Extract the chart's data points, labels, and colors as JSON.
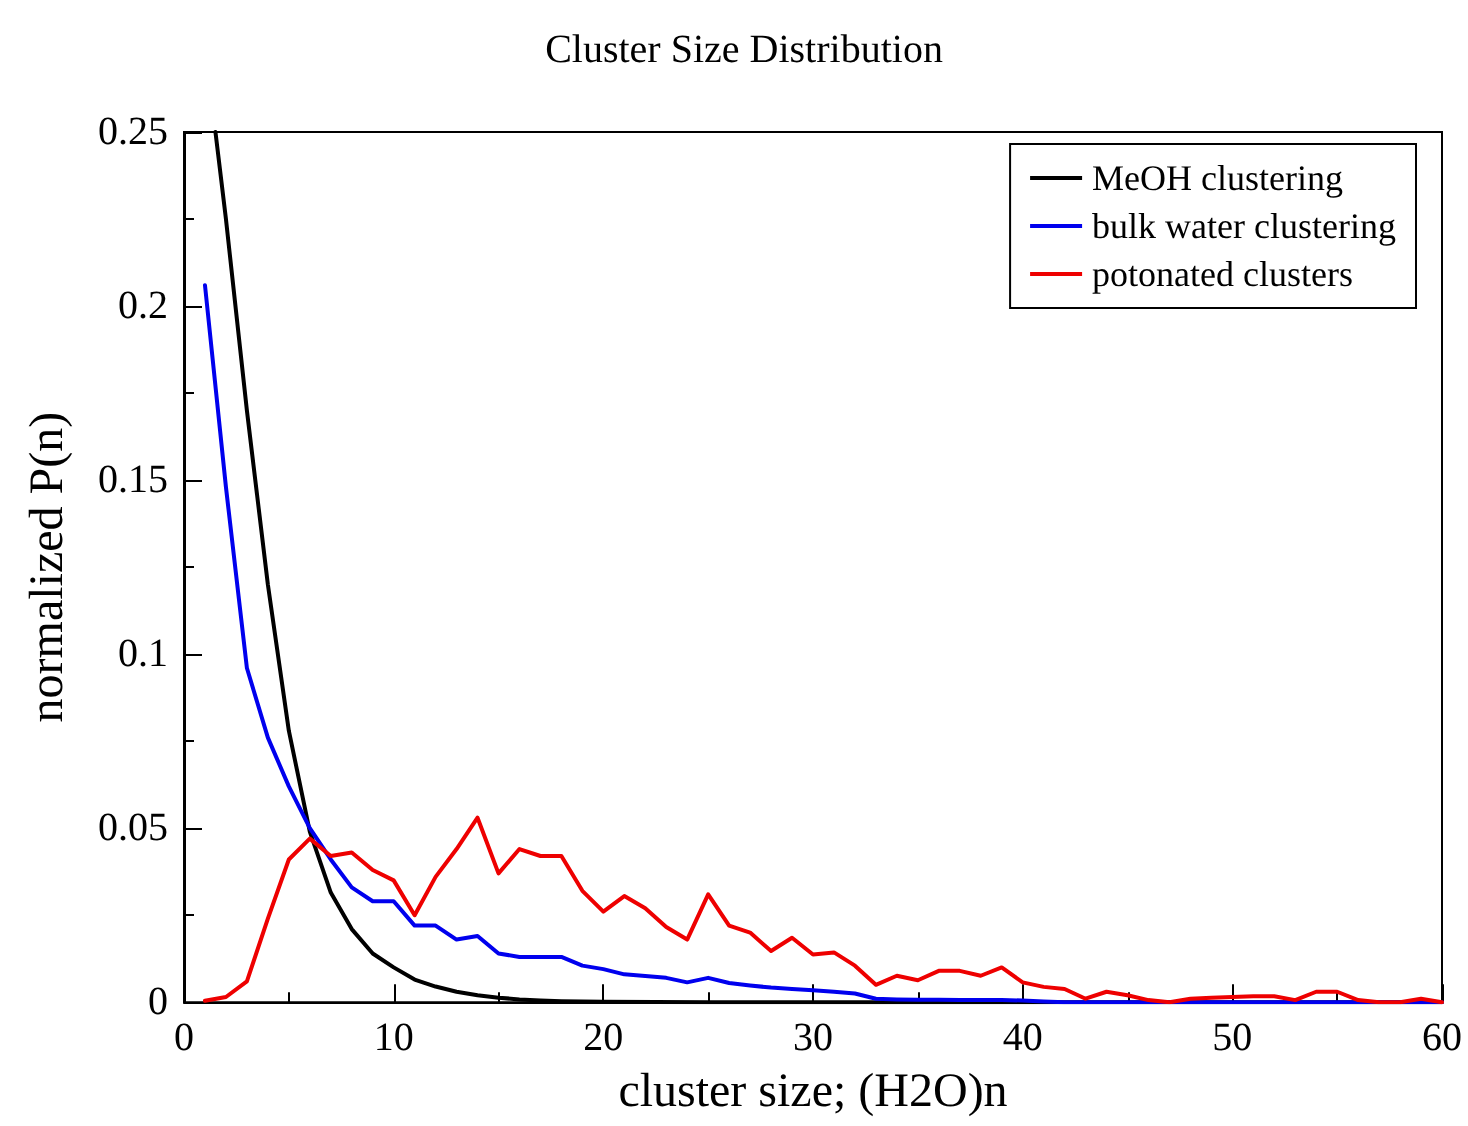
{
  "chart_data": {
    "type": "line",
    "title": "Cluster Size Distribution",
    "xlabel": "cluster size; (H2O)n",
    "ylabel": "normalized P(n)",
    "xlim": [
      0,
      60
    ],
    "xticks": [
      0,
      10,
      20,
      30,
      40,
      50,
      60
    ],
    "ylim": [
      0,
      0.25
    ],
    "yticks": [
      0,
      0.05,
      0.1,
      0.15,
      0.2,
      0.25
    ],
    "grid": false,
    "legend": "top right",
    "marker": "none",
    "line_style": "solid",
    "series": [
      {
        "name": "MeOH clustering",
        "color": "#000000",
        "x": [
          1.5,
          2,
          3,
          4,
          5,
          6,
          7,
          8,
          9,
          10,
          11,
          12,
          13,
          14,
          15,
          16,
          17,
          18,
          19,
          20,
          25,
          30,
          40,
          50,
          60
        ],
        "values": [
          0.25,
          0.225,
          0.17,
          0.12,
          0.078,
          0.049,
          0.0315,
          0.021,
          0.014,
          0.01,
          0.0065,
          0.0045,
          0.003,
          0.002,
          0.0013,
          0.0008,
          0.0005,
          0.0003,
          0.0002,
          0.0001,
          0,
          0,
          0,
          0,
          0
        ]
      },
      {
        "name": "bulk water clustering",
        "color": "#0000ee",
        "x": [
          1,
          2,
          3,
          4,
          5,
          6,
          7,
          8,
          9,
          10,
          11,
          12,
          13,
          14,
          15,
          16,
          17,
          18,
          19,
          20,
          21,
          22,
          23,
          24,
          25,
          26,
          27,
          28,
          29,
          30,
          31,
          32,
          33,
          34,
          35,
          36,
          37,
          38,
          39,
          40,
          41,
          42,
          45,
          50,
          55,
          60
        ],
        "values": [
          0.206,
          0.148,
          0.096,
          0.076,
          0.062,
          0.05,
          0.041,
          0.033,
          0.029,
          0.029,
          0.022,
          0.022,
          0.018,
          0.019,
          0.014,
          0.013,
          0.013,
          0.013,
          0.0105,
          0.0095,
          0.008,
          0.0075,
          0.007,
          0.0057,
          0.007,
          0.0055,
          0.0048,
          0.0042,
          0.0038,
          0.0034,
          0.003,
          0.0025,
          0.001,
          0.0008,
          0.0007,
          0.0007,
          0.0006,
          0.0006,
          0.0006,
          0.0005,
          0.0002,
          0,
          0,
          0,
          0,
          0
        ]
      },
      {
        "name": "potonated clusters",
        "color": "#ee0000",
        "x": [
          1,
          2,
          3,
          4,
          5,
          6,
          7,
          8,
          9,
          10,
          11,
          12,
          13,
          14,
          15,
          16,
          17,
          18,
          19,
          20,
          21,
          22,
          23,
          24,
          25,
          26,
          27,
          28,
          29,
          30,
          31,
          32,
          33,
          34,
          35,
          36,
          37,
          38,
          39,
          40,
          41,
          42,
          43,
          44,
          45,
          46,
          47,
          48,
          49,
          50,
          51,
          52,
          53,
          54,
          55,
          56,
          57,
          58,
          59,
          60
        ],
        "values": [
          0.0004,
          0.0015,
          0.006,
          0.024,
          0.041,
          0.047,
          0.042,
          0.043,
          0.038,
          0.035,
          0.025,
          0.036,
          0.044,
          0.053,
          0.037,
          0.044,
          0.042,
          0.042,
          0.032,
          0.026,
          0.0305,
          0.027,
          0.0216,
          0.018,
          0.031,
          0.022,
          0.02,
          0.0147,
          0.0185,
          0.0137,
          0.0143,
          0.0105,
          0.005,
          0.0076,
          0.0063,
          0.009,
          0.009,
          0.0076,
          0.01,
          0.0057,
          0.0044,
          0.0038,
          0.001,
          0.003,
          0.002,
          0.0006,
          0,
          0.001,
          0.0013,
          0.0015,
          0.0017,
          0.0017,
          0.0006,
          0.003,
          0.003,
          0.0006,
          0,
          0,
          0.001,
          0
        ]
      }
    ]
  }
}
